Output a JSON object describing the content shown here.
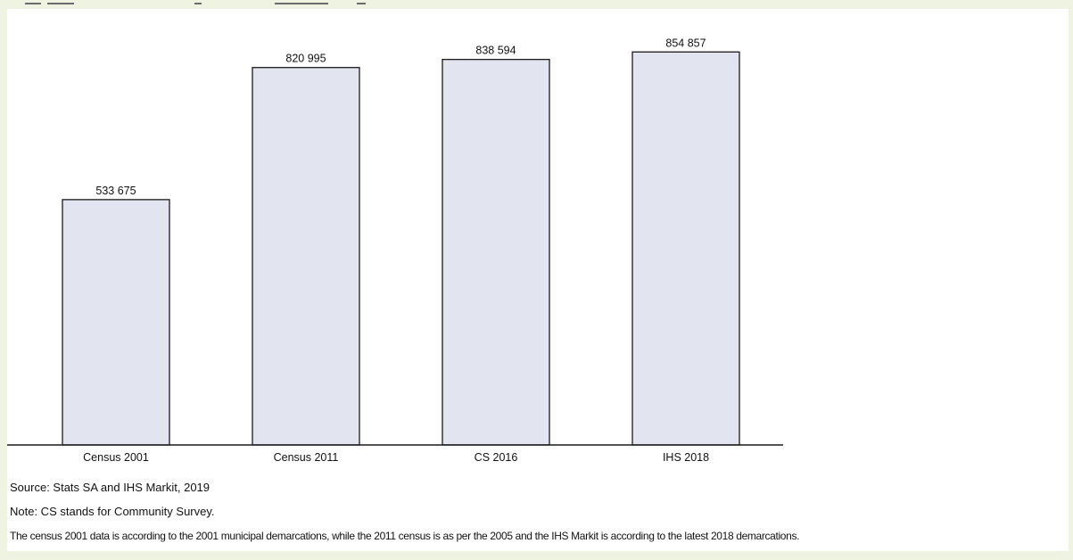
{
  "chart_data": {
    "type": "bar",
    "title": "",
    "categories": [
      "Census 2001",
      "Census 2011",
      "CS 2016",
      "IHS 2018"
    ],
    "values": [
      533675,
      820995,
      838594,
      854857
    ],
    "data_labels": [
      "533 675",
      "820 995",
      "838 594",
      "854 857"
    ],
    "xlabel": "",
    "ylabel": "",
    "ylim": [
      0,
      900000
    ],
    "grid": false,
    "legend": "none",
    "colors": {
      "bar_fill": "#e2e5f0",
      "bar_stroke": "#1a1a1a",
      "background": "#ffffff",
      "page_background": "#eef3e2"
    }
  },
  "notes": {
    "source": "Source: Stats SA and IHS Markit, 2019",
    "cs": "Note: CS stands for Community Survey.",
    "demarcation": "The census 2001 data is according to the 2001 municipal demarcations, while the 2011 census is as per the 2005 and the IHS Markit is according to the latest 2018 demarcations."
  }
}
